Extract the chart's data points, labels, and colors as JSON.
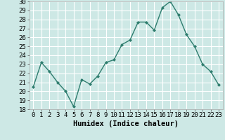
{
  "x": [
    0,
    1,
    2,
    3,
    4,
    5,
    6,
    7,
    8,
    9,
    10,
    11,
    12,
    13,
    14,
    15,
    16,
    17,
    18,
    19,
    20,
    21,
    22,
    23
  ],
  "y": [
    20.5,
    23.2,
    22.2,
    21.0,
    20.0,
    18.3,
    21.3,
    20.8,
    21.7,
    23.2,
    23.5,
    25.2,
    25.7,
    27.7,
    27.7,
    26.8,
    29.3,
    30.0,
    28.5,
    26.3,
    25.0,
    23.0,
    22.2,
    20.7
  ],
  "line_color": "#2e7d6e",
  "marker": "D",
  "marker_size": 2.0,
  "linewidth": 1.0,
  "bg_color": "#cde8e5",
  "grid_color": "#ffffff",
  "xlabel": "Humidex (Indice chaleur)",
  "ylim": [
    18,
    30
  ],
  "xlim": [
    -0.5,
    23.5
  ],
  "yticks": [
    18,
    19,
    20,
    21,
    22,
    23,
    24,
    25,
    26,
    27,
    28,
    29,
    30
  ],
  "xticks": [
    0,
    1,
    2,
    3,
    4,
    5,
    6,
    7,
    8,
    9,
    10,
    11,
    12,
    13,
    14,
    15,
    16,
    17,
    18,
    19,
    20,
    21,
    22,
    23
  ],
  "xlabel_fontsize": 7.5,
  "tick_fontsize": 6.5
}
